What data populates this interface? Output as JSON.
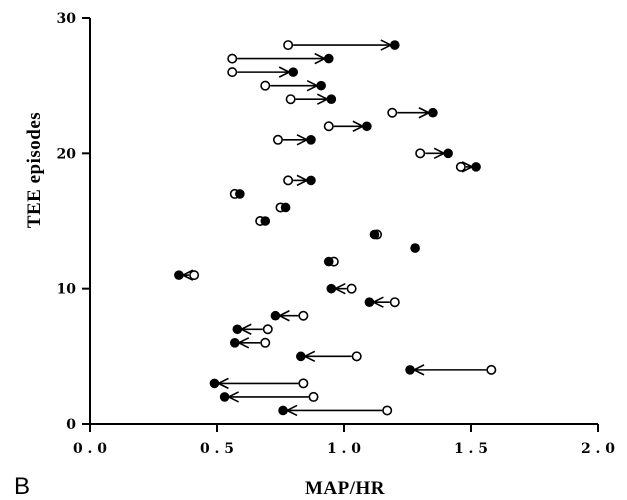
{
  "chart_data": {
    "type": "scatter",
    "panel_label": "B",
    "xlabel": "MAP/HR",
    "ylabel": "TEE  episodes",
    "xlim": [
      0,
      2.0
    ],
    "ylim": [
      0,
      30
    ],
    "x_ticks": [
      "0.0",
      "0.5",
      "1.0",
      "1.5",
      "2.0"
    ],
    "y_ticks": [
      "0",
      "10",
      "20",
      "30"
    ],
    "legend": "none",
    "grid": false,
    "marker_open": "open circle",
    "marker_filled": "filled circle",
    "colors": {
      "ink": "#000000",
      "background": "#ffffff"
    },
    "episodes": [
      {
        "episode": 1,
        "open_x": 1.17,
        "filled_x": 0.76,
        "arrow": true
      },
      {
        "episode": 2,
        "open_x": 0.88,
        "filled_x": 0.53,
        "arrow": true
      },
      {
        "episode": 3,
        "open_x": 0.84,
        "filled_x": 0.49,
        "arrow": true
      },
      {
        "episode": 4,
        "open_x": 1.58,
        "filled_x": 1.26,
        "arrow": true
      },
      {
        "episode": 5,
        "open_x": 1.05,
        "filled_x": 0.83,
        "arrow": true
      },
      {
        "episode": 6,
        "open_x": 0.69,
        "filled_x": 0.57,
        "arrow": true
      },
      {
        "episode": 7,
        "open_x": 0.7,
        "filled_x": 0.58,
        "arrow": true
      },
      {
        "episode": 8,
        "open_x": 0.84,
        "filled_x": 0.73,
        "arrow": true
      },
      {
        "episode": 9,
        "open_x": 1.2,
        "filled_x": 1.1,
        "arrow": true
      },
      {
        "episode": 10,
        "open_x": 1.03,
        "filled_x": 0.95,
        "arrow": true
      },
      {
        "episode": 11,
        "open_x": 0.41,
        "filled_x": 0.35,
        "arrow": true
      },
      {
        "episode": 12,
        "open_x": 0.96,
        "filled_x": 0.94,
        "arrow": false
      },
      {
        "episode": 13,
        "open_x": null,
        "filled_x": 1.28,
        "arrow": false
      },
      {
        "episode": 14,
        "open_x": 1.13,
        "filled_x": 1.12,
        "arrow": false
      },
      {
        "episode": 15,
        "open_x": 0.67,
        "filled_x": 0.69,
        "arrow": false
      },
      {
        "episode": 16,
        "open_x": 0.75,
        "filled_x": 0.77,
        "arrow": false
      },
      {
        "episode": 17,
        "open_x": 0.57,
        "filled_x": 0.59,
        "arrow": false
      },
      {
        "episode": 18,
        "open_x": 0.78,
        "filled_x": 0.87,
        "arrow": true
      },
      {
        "episode": 19,
        "open_x": 1.46,
        "filled_x": 1.52,
        "arrow": true
      },
      {
        "episode": 20,
        "open_x": 1.3,
        "filled_x": 1.41,
        "arrow": true
      },
      {
        "episode": 21,
        "open_x": 0.74,
        "filled_x": 0.87,
        "arrow": true
      },
      {
        "episode": 22,
        "open_x": 0.94,
        "filled_x": 1.09,
        "arrow": true
      },
      {
        "episode": 23,
        "open_x": 1.19,
        "filled_x": 1.35,
        "arrow": true
      },
      {
        "episode": 24,
        "open_x": 0.79,
        "filled_x": 0.95,
        "arrow": true
      },
      {
        "episode": 25,
        "open_x": 0.69,
        "filled_x": 0.91,
        "arrow": true
      },
      {
        "episode": 26,
        "open_x": 0.56,
        "filled_x": 0.8,
        "arrow": true
      },
      {
        "episode": 27,
        "open_x": 0.56,
        "filled_x": 0.94,
        "arrow": true
      },
      {
        "episode": 28,
        "open_x": 0.78,
        "filled_x": 1.2,
        "arrow": true
      }
    ]
  }
}
